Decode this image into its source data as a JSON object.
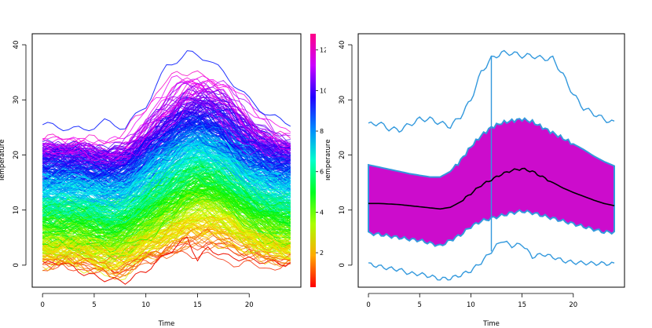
{
  "chart_data": [
    {
      "type": "line",
      "panel": "left",
      "xlabel": "Time",
      "ylabel": "Temperature",
      "xlim": [
        -1,
        25
      ],
      "ylim": [
        -4,
        42
      ],
      "xticks": [
        0,
        5,
        10,
        15,
        20
      ],
      "yticks": [
        0,
        10,
        20,
        30,
        40
      ],
      "colorbar": {
        "range": [
          0.3,
          12.8
        ],
        "ticks": [
          2,
          4,
          6,
          8,
          10,
          12
        ],
        "colors": [
          "#ff0000",
          "#ffaa00",
          "#aaff00",
          "#00ff22",
          "#00ffcc",
          "#0088ff",
          "#2200ff",
          "#cc00ff",
          "#ff0088"
        ]
      },
      "curve_summary": {
        "count": 420,
        "x_range": [
          0,
          24
        ],
        "t_values": [
          0,
          2,
          4,
          6,
          8,
          10,
          12,
          14,
          15,
          16,
          18,
          20,
          22,
          24
        ],
        "max_curve": [
          25.5,
          25,
          24.5,
          26,
          25,
          29,
          36,
          38.5,
          38,
          37.5,
          34,
          30,
          27,
          25.8
        ],
        "min_curve": [
          0.2,
          0.5,
          -1.5,
          -2.5,
          -3,
          -1,
          2,
          5,
          1,
          3,
          1.5,
          1,
          0.5,
          0.2
        ]
      }
    },
    {
      "type": "area",
      "panel": "right",
      "xlabel": "Time",
      "ylabel": "Temperature",
      "xlim": [
        -1,
        25
      ],
      "ylim": [
        -4,
        42
      ],
      "xticks": [
        0,
        5,
        10,
        15,
        20
      ],
      "yticks": [
        0,
        10,
        20,
        30,
        40
      ],
      "colors": {
        "band": "#cc0ccc",
        "edge": "#3399dd",
        "median": "#000000"
      },
      "x": [
        0,
        1,
        2,
        3,
        4,
        5,
        6,
        7,
        8,
        9,
        10,
        11,
        12,
        13,
        14,
        15,
        16,
        17,
        18,
        19,
        20,
        21,
        22,
        23,
        24
      ],
      "median": [
        11.2,
        11.2,
        11.1,
        11.0,
        10.8,
        10.6,
        10.4,
        10.2,
        10.5,
        11.5,
        13.0,
        14.5,
        15.5,
        16.5,
        17.2,
        17.5,
        17.0,
        16.0,
        15.0,
        14.0,
        13.2,
        12.5,
        11.8,
        11.2,
        10.8
      ],
      "central_upper": [
        18.2,
        17.8,
        17.4,
        17.0,
        16.6,
        16.3,
        16.0,
        16.0,
        17.0,
        19.0,
        21.5,
        23.5,
        25.0,
        25.8,
        26.2,
        26.5,
        26.0,
        25.0,
        24.0,
        23.0,
        22.0,
        21.0,
        19.8,
        18.8,
        18.0
      ],
      "central_lower": [
        5.8,
        5.6,
        5.3,
        5.0,
        4.7,
        4.5,
        4.0,
        3.5,
        4.5,
        5.5,
        7.0,
        8.0,
        8.5,
        9.0,
        9.5,
        9.8,
        9.5,
        9.0,
        8.5,
        8.0,
        7.5,
        7.0,
        6.5,
        6.0,
        6.0
      ],
      "max_envelope": [
        25.5,
        25.8,
        24.8,
        24.5,
        25.5,
        26.5,
        26.5,
        25.8,
        25.2,
        27.0,
        30.0,
        35.0,
        37.5,
        38.5,
        38.5,
        38.0,
        38.0,
        37.5,
        37.5,
        34.5,
        31.0,
        28.5,
        27.5,
        26.5,
        25.8
      ],
      "min_envelope": [
        0.2,
        -0.2,
        -0.6,
        -0.8,
        -1.5,
        -1.6,
        -2.0,
        -2.5,
        -2.4,
        -1.8,
        -1.0,
        0.5,
        2.5,
        4.5,
        3.5,
        3.8,
        1.5,
        2.0,
        1.5,
        0.8,
        0.5,
        0.4,
        0.3,
        0.3,
        0.2
      ],
      "outlier": {
        "time": 12,
        "low": 2.5,
        "high": 38
      }
    }
  ]
}
